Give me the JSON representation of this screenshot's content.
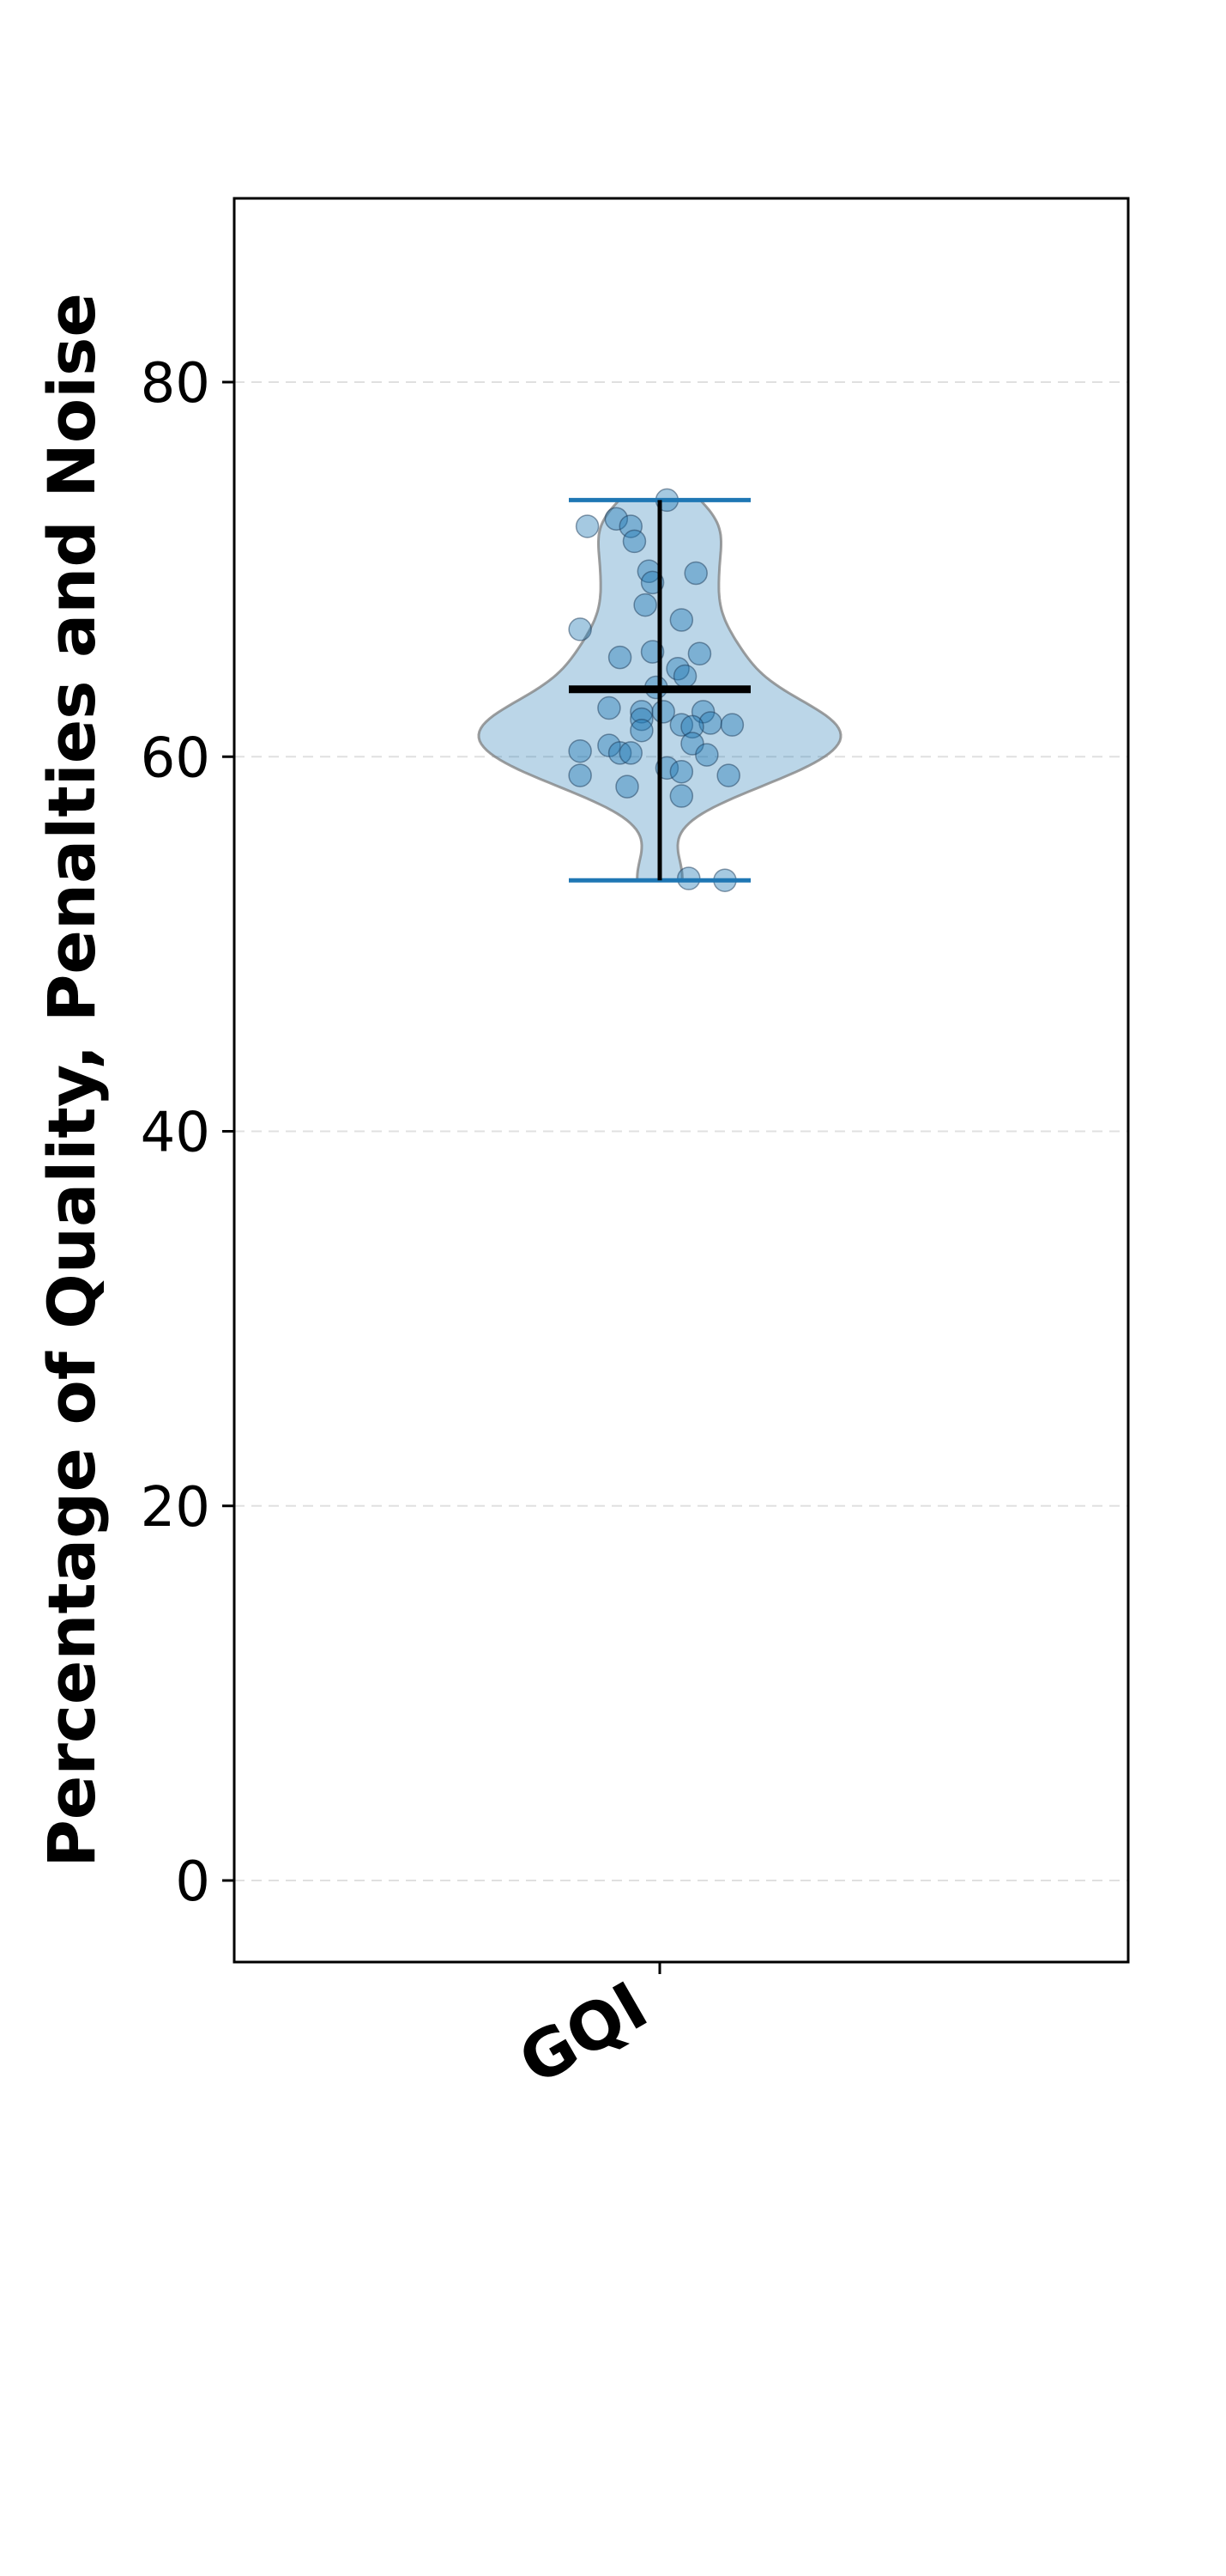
{
  "chart_data": {
    "type": "violin",
    "title": "",
    "xlabel": "",
    "ylabel": "Percentage of Quality, Penalties and Noise",
    "categories": [
      "GQI"
    ],
    "ylim": [
      -4.2,
      90
    ],
    "yticks": [
      0,
      20,
      40,
      60,
      80
    ],
    "grid": "y-dashed",
    "series": [
      {
        "category": "GQI",
        "min": 53.4,
        "max": 73.7,
        "mean": 63.6,
        "points": [
          {
            "x": -0.2,
            "y": 72.3
          },
          {
            "x": -0.12,
            "y": 72.7
          },
          {
            "x": -0.08,
            "y": 72.3
          },
          {
            "x": -0.07,
            "y": 71.5
          },
          {
            "x": 0.02,
            "y": 73.7
          },
          {
            "x": -0.03,
            "y": 69.9
          },
          {
            "x": -0.02,
            "y": 69.3
          },
          {
            "x": 0.1,
            "y": 69.8
          },
          {
            "x": -0.04,
            "y": 68.1
          },
          {
            "x": 0.06,
            "y": 67.3
          },
          {
            "x": -0.22,
            "y": 66.8
          },
          {
            "x": -0.02,
            "y": 65.6
          },
          {
            "x": -0.11,
            "y": 65.3
          },
          {
            "x": 0.11,
            "y": 65.5
          },
          {
            "x": 0.05,
            "y": 64.7
          },
          {
            "x": 0.07,
            "y": 64.3
          },
          {
            "x": -0.01,
            "y": 63.7
          },
          {
            "x": -0.14,
            "y": 62.6
          },
          {
            "x": -0.05,
            "y": 62.4
          },
          {
            "x": 0.01,
            "y": 62.4
          },
          {
            "x": 0.12,
            "y": 62.4
          },
          {
            "x": -0.05,
            "y": 62.0
          },
          {
            "x": 0.14,
            "y": 61.8
          },
          {
            "x": 0.2,
            "y": 61.7
          },
          {
            "x": 0.06,
            "y": 61.7
          },
          {
            "x": 0.09,
            "y": 61.6
          },
          {
            "x": -0.05,
            "y": 61.4
          },
          {
            "x": 0.09,
            "y": 60.7
          },
          {
            "x": -0.14,
            "y": 60.6
          },
          {
            "x": -0.22,
            "y": 60.3
          },
          {
            "x": -0.11,
            "y": 60.2
          },
          {
            "x": -0.08,
            "y": 60.2
          },
          {
            "x": 0.13,
            "y": 60.1
          },
          {
            "x": 0.02,
            "y": 59.4
          },
          {
            "x": 0.06,
            "y": 59.2
          },
          {
            "x": -0.22,
            "y": 59.0
          },
          {
            "x": 0.19,
            "y": 59.0
          },
          {
            "x": -0.09,
            "y": 58.4
          },
          {
            "x": 0.06,
            "y": 57.9
          },
          {
            "x": 0.08,
            "y": 53.5
          },
          {
            "x": 0.18,
            "y": 53.4
          }
        ]
      }
    ],
    "colors": {
      "violin_fill": "#1f77b4",
      "violin_edge": "#7f7f7f",
      "whisker": "#1f77b4",
      "mean_line": "#000000",
      "points": "#1f77b4",
      "grid": "#d3d3d3"
    }
  }
}
